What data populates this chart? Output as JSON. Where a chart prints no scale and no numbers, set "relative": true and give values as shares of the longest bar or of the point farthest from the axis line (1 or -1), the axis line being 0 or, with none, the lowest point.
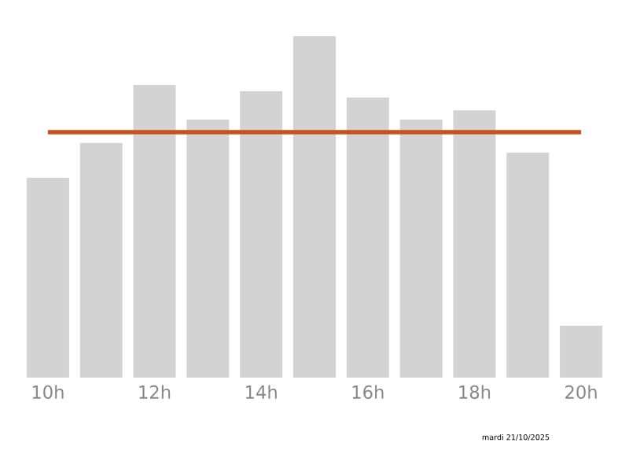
{
  "chart_data": {
    "type": "bar",
    "relative": true,
    "categories": [
      "10h",
      null,
      "12h",
      null,
      "14h",
      null,
      "16h",
      null,
      "18h",
      null,
      "20h"
    ],
    "values": [
      0.585,
      0.687,
      0.857,
      0.756,
      0.839,
      1,
      0.82,
      0.756,
      0.783,
      0.659,
      0.152
    ],
    "color": "#d3d3d3",
    "ref_lines": [
      {
        "axis": "y",
        "value": 0.719,
        "color": "#c8501e"
      }
    ],
    "annotations": [
      "mardi 21/10/2025"
    ]
  }
}
